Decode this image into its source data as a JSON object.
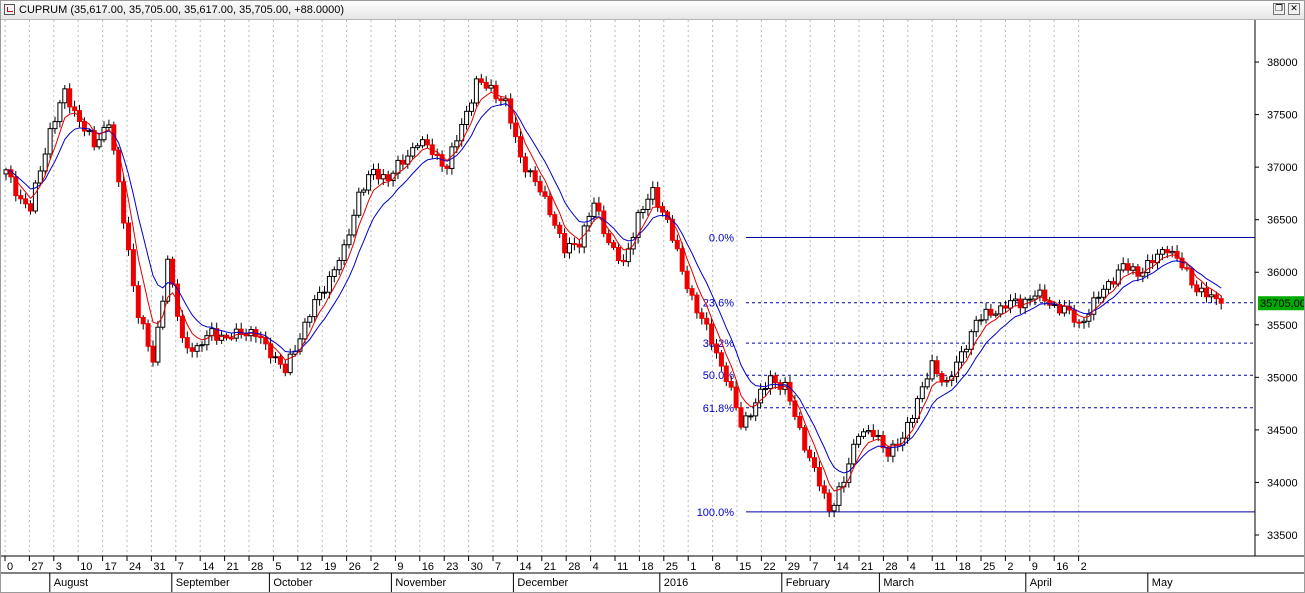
{
  "window": {
    "title": "CUPRUM (35,617.00, 35,705.00, 35,617.00, 35,705.00, +88.0000)"
  },
  "chart_data": {
    "type": "candlestick",
    "symbol": "CUPRUM",
    "last_price_label": "35705.00",
    "colors": {
      "up": "#ffffff",
      "down": "#ee0000",
      "outline": "#000000",
      "ma_fast": "#dd0000",
      "ma_slow": "#0000cc",
      "fib": "#0000aa",
      "price_tag": "#00aa00"
    },
    "y_axis": {
      "range": [
        33300,
        38400
      ],
      "ticks": [
        33500,
        34000,
        34500,
        35000,
        35500,
        36000,
        36500,
        37000,
        37500,
        38000
      ]
    },
    "x_axis": {
      "day_ticks": [
        "0",
        "27",
        "3",
        "10",
        "17",
        "24",
        "31",
        "7",
        "14",
        "21",
        "28",
        "5",
        "12",
        "19",
        "26",
        "2",
        "9",
        "16",
        "23",
        "30",
        "7",
        "14",
        "21",
        "28",
        "4",
        "11",
        "18",
        "25",
        "1",
        "8",
        "15",
        "22",
        "29",
        "7",
        "14",
        "21",
        "28",
        "4",
        "11",
        "18",
        "25",
        "2",
        "9",
        "16",
        "2"
      ],
      "months": [
        "August",
        "September",
        "October",
        "November",
        "December",
        "2016",
        "February",
        "March",
        "April",
        "May"
      ]
    },
    "fibonacci": [
      {
        "label": "0.0%",
        "value": 36330
      },
      {
        "label": "23.6%",
        "value": 35710
      },
      {
        "label": "38.2%",
        "value": 35325
      },
      {
        "label": "50.0%",
        "value": 35020
      },
      {
        "label": "61.8%",
        "value": 34710
      },
      {
        "label": "100.0%",
        "value": 33720
      }
    ],
    "price_waypoints": [
      [
        0,
        36950
      ],
      [
        3,
        36700
      ],
      [
        5,
        36600
      ],
      [
        9,
        37350
      ],
      [
        12,
        37700
      ],
      [
        15,
        37450
      ],
      [
        18,
        37200
      ],
      [
        21,
        37450
      ],
      [
        24,
        36500
      ],
      [
        27,
        35600
      ],
      [
        30,
        35150
      ],
      [
        33,
        36100
      ],
      [
        36,
        35350
      ],
      [
        39,
        35250
      ],
      [
        42,
        35450
      ],
      [
        45,
        35350
      ],
      [
        48,
        35450
      ],
      [
        51,
        35400
      ],
      [
        54,
        35250
      ],
      [
        57,
        35050
      ],
      [
        60,
        35400
      ],
      [
        63,
        35700
      ],
      [
        66,
        35950
      ],
      [
        69,
        36200
      ],
      [
        72,
        36750
      ],
      [
        75,
        36950
      ],
      [
        78,
        36900
      ],
      [
        81,
        37050
      ],
      [
        84,
        37250
      ],
      [
        87,
        37150
      ],
      [
        90,
        37000
      ],
      [
        93,
        37400
      ],
      [
        96,
        37800
      ],
      [
        99,
        37750
      ],
      [
        102,
        37600
      ],
      [
        105,
        37100
      ],
      [
        108,
        36850
      ],
      [
        111,
        36600
      ],
      [
        114,
        36200
      ],
      [
        117,
        36300
      ],
      [
        120,
        36650
      ],
      [
        123,
        36300
      ],
      [
        126,
        36050
      ],
      [
        129,
        36550
      ],
      [
        132,
        36750
      ],
      [
        135,
        36500
      ],
      [
        138,
        36000
      ],
      [
        141,
        35650
      ],
      [
        144,
        35350
      ],
      [
        147,
        35000
      ],
      [
        150,
        34550
      ],
      [
        153,
        34750
      ],
      [
        156,
        35000
      ],
      [
        159,
        34900
      ],
      [
        162,
        34500
      ],
      [
        165,
        34100
      ],
      [
        168,
        33750
      ],
      [
        171,
        34000
      ],
      [
        174,
        34500
      ],
      [
        177,
        34450
      ],
      [
        180,
        34300
      ],
      [
        183,
        34400
      ],
      [
        186,
        34800
      ],
      [
        189,
        35100
      ],
      [
        192,
        34950
      ],
      [
        195,
        35200
      ],
      [
        198,
        35550
      ],
      [
        201,
        35600
      ],
      [
        204,
        35700
      ],
      [
        207,
        35700
      ],
      [
        210,
        35800
      ],
      [
        213,
        35700
      ],
      [
        216,
        35650
      ],
      [
        219,
        35500
      ],
      [
        222,
        35700
      ],
      [
        225,
        35900
      ],
      [
        228,
        36050
      ],
      [
        231,
        36000
      ],
      [
        234,
        36100
      ],
      [
        237,
        36250
      ],
      [
        240,
        36050
      ],
      [
        243,
        35850
      ],
      [
        246,
        35750
      ],
      [
        248,
        35705
      ]
    ]
  }
}
